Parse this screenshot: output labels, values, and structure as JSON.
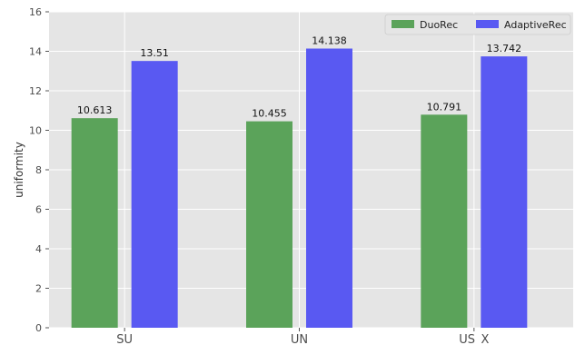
{
  "chart_data": {
    "type": "bar",
    "categories": [
      "SU",
      "UN",
      "US_X"
    ],
    "series": [
      {
        "name": "DuoRec",
        "values": [
          10.613,
          10.455,
          10.791
        ],
        "labels": [
          "10.613",
          "10.455",
          "10.791"
        ],
        "color": "#5ba35a"
      },
      {
        "name": "AdaptiveRec",
        "values": [
          13.51,
          14.138,
          13.742
        ],
        "labels": [
          "13.51",
          "14.138",
          "13.742"
        ],
        "color": "#5959f2"
      }
    ],
    "title": "",
    "xlabel": "",
    "ylabel": "uniformity",
    "ylim": [
      0,
      16
    ],
    "yticks": [
      0,
      2,
      4,
      6,
      8,
      10,
      12,
      14,
      16
    ],
    "ytick_labels": [
      "0",
      "2",
      "4",
      "6",
      "8",
      "10",
      "12",
      "14",
      "16"
    ],
    "grid": true,
    "legend_position": "top-right",
    "colors": {
      "plot_background": "#e5e5e5",
      "grid": "#ffffff"
    }
  }
}
